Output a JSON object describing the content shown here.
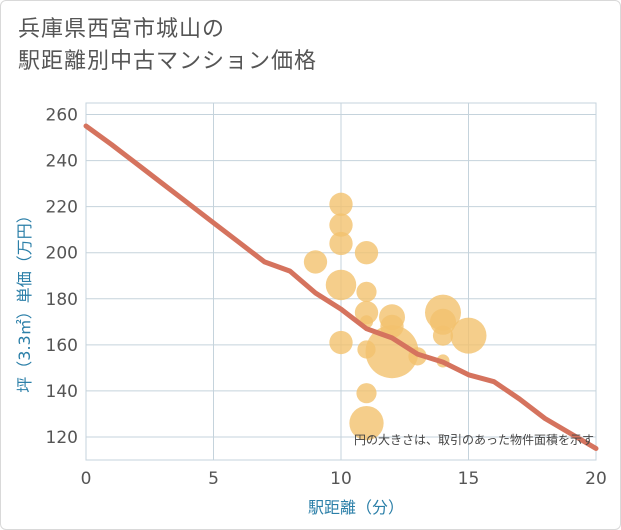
{
  "chart_data": {
    "type": "scatter",
    "title_line1": "兵庫県西宮市城山の",
    "title_line2": "駅距離別中古マンション価格",
    "xlabel": "駅距離（分）",
    "ylabel": "坪（3.3㎡）単価（万円）",
    "note": "円の大きさは、取引のあった物件面積を示す",
    "xlim": [
      0,
      20
    ],
    "ylim": [
      110,
      265
    ],
    "x_ticks": [
      0,
      5,
      10,
      15,
      20
    ],
    "y_ticks": [
      120,
      140,
      160,
      180,
      200,
      220,
      240,
      260
    ],
    "trend_line": {
      "x": [
        0,
        1,
        2,
        3,
        4,
        5,
        6,
        7,
        8,
        9,
        10,
        11,
        12,
        13,
        14,
        15,
        16,
        17,
        18,
        19,
        20
      ],
      "y": [
        255,
        247,
        238.5,
        230,
        221.5,
        213,
        204.5,
        196,
        192,
        182.5,
        175.5,
        167,
        163,
        156,
        152.5,
        147,
        144,
        136.5,
        128,
        121.5,
        115
      ]
    },
    "points": [
      {
        "x": 9,
        "y": 196,
        "size": 3
      },
      {
        "x": 10,
        "y": 221,
        "size": 3
      },
      {
        "x": 10,
        "y": 212,
        "size": 3
      },
      {
        "x": 10,
        "y": 204,
        "size": 3
      },
      {
        "x": 10,
        "y": 186,
        "size": 6
      },
      {
        "x": 10,
        "y": 161,
        "size": 3
      },
      {
        "x": 11,
        "y": 200,
        "size": 3
      },
      {
        "x": 11,
        "y": 183,
        "size": 2
      },
      {
        "x": 11,
        "y": 174,
        "size": 3
      },
      {
        "x": 11,
        "y": 170,
        "size": 0.5
      },
      {
        "x": 11,
        "y": 158,
        "size": 1.5
      },
      {
        "x": 11,
        "y": 139,
        "size": 2
      },
      {
        "x": 11,
        "y": 126,
        "size": 8
      },
      {
        "x": 12,
        "y": 172,
        "size": 4
      },
      {
        "x": 12,
        "y": 168,
        "size": 3
      },
      {
        "x": 12,
        "y": 157,
        "size": 22
      },
      {
        "x": 13,
        "y": 155,
        "size": 1.5
      },
      {
        "x": 14,
        "y": 174,
        "size": 9
      },
      {
        "x": 14,
        "y": 170,
        "size": 4
      },
      {
        "x": 14,
        "y": 164,
        "size": 2
      },
      {
        "x": 14,
        "y": 153,
        "size": 0.5
      },
      {
        "x": 15,
        "y": 164,
        "size": 9
      }
    ],
    "colors": {
      "trend": "#d5735e",
      "bubble": "#f3c26e",
      "grid": "#c5d3dc",
      "axis_label": "#2b7fa8"
    }
  }
}
